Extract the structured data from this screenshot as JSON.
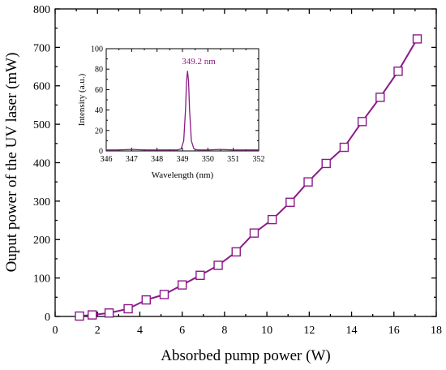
{
  "chart_data": [
    {
      "type": "line",
      "title": "",
      "xlabel": "Absorbed pump power (W)",
      "ylabel": "Ouput power of the UV laser (mW)",
      "xlim": [
        0,
        18
      ],
      "ylim": [
        0,
        800
      ],
      "xticks": [
        0,
        2,
        4,
        6,
        8,
        10,
        12,
        14,
        16,
        18
      ],
      "yticks": [
        0,
        100,
        200,
        300,
        400,
        500,
        600,
        700,
        800
      ],
      "marker": "open-square",
      "color": "#8B1A89",
      "grid": false,
      "legend": "none",
      "x": [
        1.15,
        1.75,
        2.55,
        3.45,
        4.3,
        5.15,
        6.0,
        6.85,
        7.7,
        8.55,
        9.4,
        10.25,
        11.1,
        11.95,
        12.8,
        13.65,
        14.5,
        15.35,
        16.2,
        17.1
      ],
      "y": [
        1,
        4,
        9,
        20,
        43,
        57,
        82,
        107,
        133,
        168,
        217,
        252,
        297,
        350,
        398,
        440,
        507,
        570,
        638,
        722
      ]
    },
    {
      "type": "line",
      "title": "",
      "xlabel": "Wavelength (nm)",
      "ylabel": "Intensity (a.u.)",
      "xlim": [
        346,
        352
      ],
      "ylim": [
        0,
        100
      ],
      "xticks": [
        346,
        347,
        348,
        349,
        350,
        351,
        352
      ],
      "yticks": [
        0,
        20,
        40,
        60,
        80,
        100
      ],
      "peak_label": "349.2 nm",
      "color": "#8B1A89",
      "grid": false,
      "x": [
        346.0,
        346.5,
        347.0,
        347.5,
        348.0,
        348.5,
        348.8,
        348.95,
        349.05,
        349.12,
        349.16,
        349.2,
        349.24,
        349.28,
        349.35,
        349.45,
        349.6,
        350.0,
        350.5,
        351.0,
        351.5,
        352.0
      ],
      "y": [
        1,
        1,
        1.5,
        1,
        1,
        1,
        1,
        2,
        10,
        40,
        68,
        78,
        68,
        40,
        10,
        2,
        1,
        1,
        1.5,
        1,
        1,
        1
      ]
    }
  ]
}
